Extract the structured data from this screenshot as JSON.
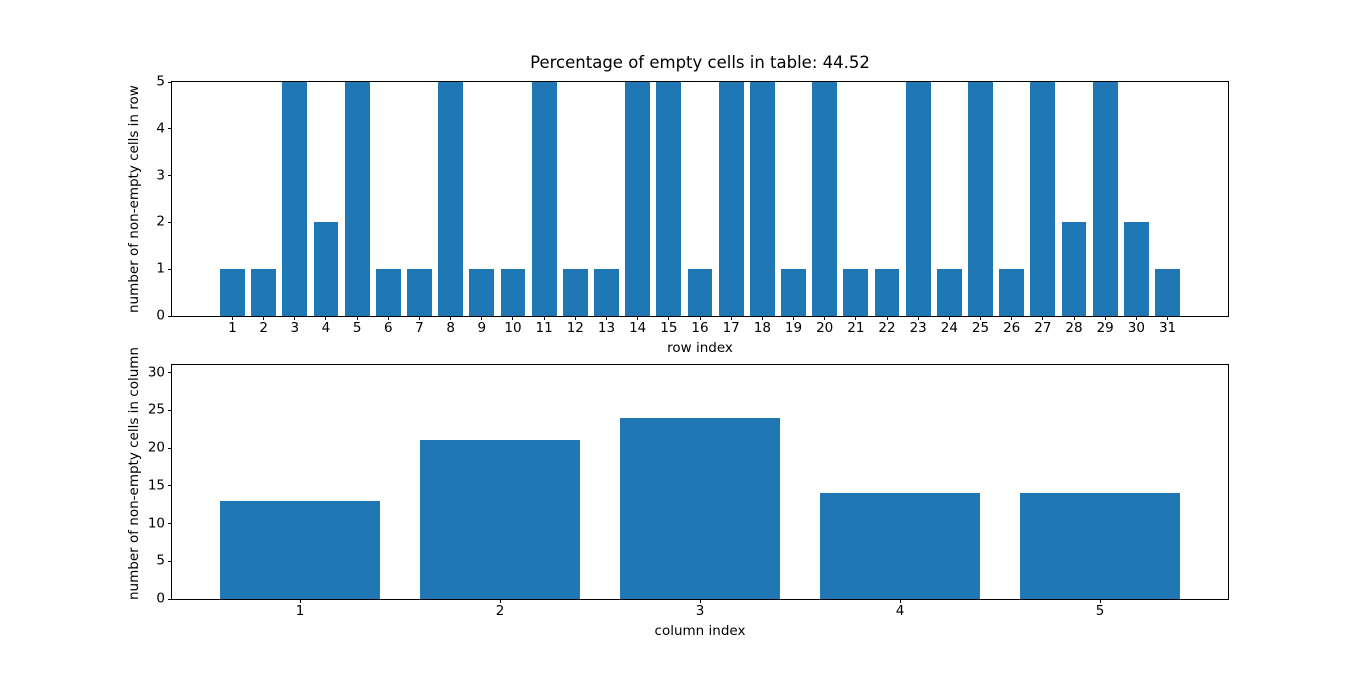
{
  "figure": {
    "background": "#ffffff",
    "bar_color": "#1f77b4",
    "axis_color": "#000000"
  },
  "chart_data": [
    {
      "type": "bar",
      "title": "Percentage of empty cells in table: 44.52",
      "xlabel": "row index",
      "ylabel": "number of non-empty cells in row",
      "categories": [
        1,
        2,
        3,
        4,
        5,
        6,
        7,
        8,
        9,
        10,
        11,
        12,
        13,
        14,
        15,
        16,
        17,
        18,
        19,
        20,
        21,
        22,
        23,
        24,
        25,
        26,
        27,
        28,
        29,
        30,
        31
      ],
      "values": [
        1,
        1,
        5,
        2,
        5,
        1,
        1,
        5,
        1,
        1,
        5,
        1,
        1,
        5,
        5,
        1,
        5,
        5,
        1,
        5,
        1,
        1,
        5,
        1,
        5,
        1,
        5,
        2,
        5,
        2,
        1
      ],
      "xlim": [
        -0.94,
        32.94
      ],
      "ylim": [
        0,
        5
      ],
      "yticks": [
        0,
        1,
        2,
        3,
        4,
        5
      ],
      "bar_width": 0.8,
      "grid": false,
      "legend": null
    },
    {
      "type": "bar",
      "title": "",
      "xlabel": "column index",
      "ylabel": "number of non-empty cells in column",
      "categories": [
        1,
        2,
        3,
        4,
        5
      ],
      "values": [
        13,
        21,
        24,
        14,
        14
      ],
      "xlim": [
        0.36,
        5.64
      ],
      "ylim": [
        0,
        31
      ],
      "yticks": [
        0,
        5,
        10,
        15,
        20,
        25,
        30
      ],
      "bar_width": 0.8,
      "grid": false,
      "legend": null
    }
  ]
}
